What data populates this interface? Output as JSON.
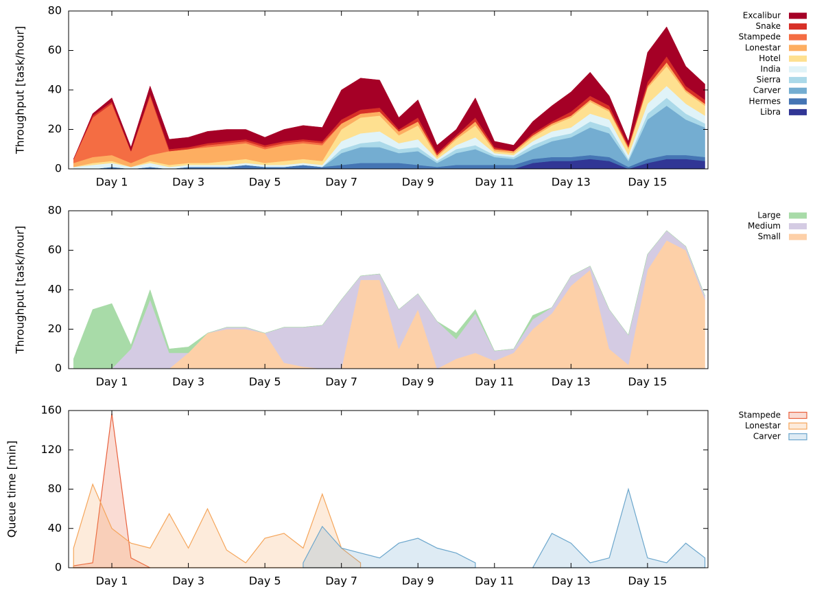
{
  "chart_data": [
    {
      "type": "area",
      "stacked": true,
      "ylabel": "Throughput [task/hour]",
      "x": [
        0,
        0.5,
        1,
        1.5,
        2,
        2.5,
        3,
        3.5,
        4,
        4.5,
        5,
        5.5,
        6,
        6.5,
        7,
        7.5,
        8,
        8.5,
        9,
        9.5,
        10,
        10.5,
        11,
        11.5,
        12,
        12.5,
        13,
        13.5,
        14,
        14.5,
        15,
        15.5,
        16,
        16.5
      ],
      "xlim": [
        -0.13,
        16.58
      ],
      "xticks": [
        {
          "value": 1,
          "label": "Day 1"
        },
        {
          "value": 3,
          "label": "Day 3"
        },
        {
          "value": 5,
          "label": "Day 5"
        },
        {
          "value": 7,
          "label": "Day 7"
        },
        {
          "value": 9,
          "label": "Day 9"
        },
        {
          "value": 11,
          "label": "Day 11"
        },
        {
          "value": 13,
          "label": "Day 13"
        },
        {
          "value": 15,
          "label": "Day 15"
        }
      ],
      "ylim": [
        0,
        80
      ],
      "yticks": [
        0,
        20,
        40,
        60,
        80
      ],
      "legend": "upper right",
      "series": [
        {
          "name": "Excalibur",
          "color": "#a50026",
          "values": [
            0,
            1,
            2,
            2,
            4,
            5,
            5,
            6,
            6,
            5,
            4,
            6,
            7,
            7,
            15,
            16,
            14,
            6,
            9,
            4,
            3,
            10,
            3,
            3,
            6,
            8,
            10,
            12,
            5,
            2,
            15,
            15,
            10,
            8
          ]
        },
        {
          "name": "Snake",
          "color": "#d73027",
          "values": [
            0,
            1,
            1,
            0,
            1,
            1,
            1,
            1,
            1,
            1,
            1,
            1,
            1,
            1,
            2,
            2,
            2,
            1,
            2,
            1,
            1,
            2,
            1,
            0,
            1,
            1,
            2,
            2,
            2,
            1,
            2,
            3,
            2,
            2
          ]
        },
        {
          "name": "Stampede",
          "color": "#f46d43",
          "values": [
            2,
            20,
            26,
            6,
            30,
            0,
            0,
            1,
            1,
            1,
            1,
            1,
            1,
            1,
            0,
            0,
            0,
            0,
            0,
            0,
            0,
            0,
            0,
            0,
            0,
            0,
            0,
            0,
            0,
            0,
            0,
            0,
            0,
            0
          ]
        },
        {
          "name": "Lonestar",
          "color": "#fdae61",
          "values": [
            2,
            3,
            3,
            2,
            3,
            7,
            7,
            8,
            8,
            8,
            7,
            8,
            8,
            8,
            3,
            2,
            2,
            2,
            2,
            1,
            1,
            2,
            1,
            1,
            1,
            1,
            1,
            1,
            1,
            1,
            1,
            2,
            1,
            1
          ]
        },
        {
          "name": "Hotel",
          "color": "#fee090",
          "values": [
            0,
            1,
            1,
            0,
            1,
            1,
            1,
            1,
            2,
            2,
            1,
            2,
            2,
            2,
            6,
            8,
            8,
            4,
            7,
            1,
            3,
            6,
            1,
            1,
            2,
            3,
            5,
            6,
            4,
            3,
            8,
            10,
            6,
            5
          ]
        },
        {
          "name": "India",
          "color": "#e0f3f8",
          "values": [
            1,
            2,
            2,
            1,
            2,
            1,
            1,
            1,
            1,
            1,
            1,
            1,
            1,
            1,
            4,
            5,
            5,
            3,
            4,
            1,
            2,
            4,
            1,
            1,
            2,
            3,
            3,
            4,
            4,
            2,
            5,
            6,
            5,
            4
          ]
        },
        {
          "name": "Sierra",
          "color": "#abd9e9",
          "values": [
            0,
            0,
            0,
            0,
            0,
            0,
            0,
            0,
            0,
            0,
            0,
            0,
            0,
            0,
            2,
            2,
            3,
            2,
            2,
            1,
            2,
            2,
            1,
            1,
            2,
            2,
            2,
            3,
            3,
            1,
            3,
            4,
            3,
            2
          ]
        },
        {
          "name": "Carver",
          "color": "#74add1",
          "values": [
            0,
            0,
            0,
            0,
            0,
            0,
            0,
            0,
            0,
            0,
            0,
            0,
            0,
            0,
            6,
            8,
            8,
            5,
            7,
            2,
            6,
            8,
            4,
            3,
            5,
            8,
            10,
            14,
            12,
            3,
            20,
            25,
            18,
            15
          ]
        },
        {
          "name": "Hermes",
          "color": "#4575b4",
          "values": [
            0,
            0,
            1,
            0,
            1,
            0,
            1,
            1,
            1,
            2,
            1,
            1,
            2,
            1,
            2,
            3,
            3,
            3,
            2,
            1,
            2,
            2,
            2,
            2,
            2,
            2,
            2,
            2,
            2,
            1,
            2,
            2,
            2,
            2
          ]
        },
        {
          "name": "Libra",
          "color": "#313695",
          "values": [
            0,
            0,
            0,
            0,
            0,
            0,
            0,
            0,
            0,
            0,
            0,
            0,
            0,
            0,
            0,
            0,
            0,
            0,
            0,
            0,
            0,
            0,
            0,
            0,
            3,
            4,
            4,
            5,
            4,
            0,
            3,
            5,
            5,
            4
          ]
        }
      ]
    },
    {
      "type": "area",
      "stacked": true,
      "ylabel": "Throughput [task/hour]",
      "x": [
        0,
        0.5,
        1,
        1.5,
        2,
        2.5,
        3,
        3.5,
        4,
        4.5,
        5,
        5.5,
        6,
        6.5,
        7,
        7.5,
        8,
        8.5,
        9,
        9.5,
        10,
        10.5,
        11,
        11.5,
        12,
        12.5,
        13,
        13.5,
        14,
        14.5,
        15,
        15.5,
        16,
        16.5
      ],
      "xlim": [
        -0.13,
        16.58
      ],
      "xticks": [
        {
          "value": 1,
          "label": "Day 1"
        },
        {
          "value": 3,
          "label": "Day 3"
        },
        {
          "value": 5,
          "label": "Day 5"
        },
        {
          "value": 7,
          "label": "Day 7"
        },
        {
          "value": 9,
          "label": "Day 9"
        },
        {
          "value": 11,
          "label": "Day 11"
        },
        {
          "value": 13,
          "label": "Day 13"
        },
        {
          "value": 15,
          "label": "Day 15"
        }
      ],
      "ylim": [
        0,
        80
      ],
      "yticks": [
        0,
        20,
        40,
        60,
        80
      ],
      "legend": "upper right",
      "series": [
        {
          "name": "Large",
          "color": "#a8dba8",
          "values": [
            5,
            30,
            33,
            2,
            5,
            2,
            3,
            0,
            0,
            0,
            0,
            0,
            0,
            0,
            0,
            0,
            0,
            0,
            0,
            0,
            3,
            2,
            0,
            0,
            2,
            0,
            0,
            0,
            0,
            0,
            0,
            0,
            0,
            0
          ]
        },
        {
          "name": "Medium",
          "color": "#d4cbe3",
          "values": [
            0,
            0,
            0,
            10,
            35,
            8,
            0,
            0,
            1,
            1,
            0,
            18,
            20,
            22,
            35,
            2,
            3,
            20,
            8,
            24,
            10,
            20,
            5,
            2,
            5,
            3,
            5,
            2,
            20,
            15,
            8,
            5,
            2,
            2
          ]
        },
        {
          "name": "Small",
          "color": "#fdd0a8",
          "values": [
            0,
            0,
            0,
            0,
            0,
            0,
            8,
            18,
            20,
            20,
            18,
            3,
            1,
            0,
            0,
            45,
            45,
            10,
            30,
            0,
            5,
            8,
            4,
            8,
            20,
            28,
            42,
            50,
            10,
            2,
            50,
            65,
            60,
            35
          ]
        }
      ]
    },
    {
      "type": "area",
      "stacked": false,
      "ylabel": "Queue time [min]",
      "x": [
        0,
        0.5,
        1,
        1.5,
        2,
        2.5,
        3,
        3.5,
        4,
        4.5,
        5,
        5.5,
        6,
        6.5,
        7,
        7.5,
        8,
        8.5,
        9,
        9.5,
        10,
        10.5,
        11,
        11.5,
        12,
        12.5,
        13,
        13.5,
        14,
        14.5,
        15,
        15.5,
        16,
        16.5
      ],
      "xlim": [
        -0.13,
        16.58
      ],
      "xticks": [
        {
          "value": 1,
          "label": "Day 1"
        },
        {
          "value": 3,
          "label": "Day 3"
        },
        {
          "value": 5,
          "label": "Day 5"
        },
        {
          "value": 7,
          "label": "Day 7"
        },
        {
          "value": 9,
          "label": "Day 9"
        },
        {
          "value": 11,
          "label": "Day 11"
        },
        {
          "value": 13,
          "label": "Day 13"
        },
        {
          "value": 15,
          "label": "Day 15"
        }
      ],
      "ylim": [
        0,
        160
      ],
      "yticks": [
        0,
        40,
        80,
        120,
        160
      ],
      "legend": "upper right",
      "series": [
        {
          "name": "Stampede",
          "color": "#e8603c",
          "values": [
            2,
            5,
            157,
            10,
            0,
            null,
            null,
            null,
            null,
            null,
            null,
            null,
            null,
            null,
            null,
            null,
            null,
            null,
            null,
            null,
            null,
            null,
            null,
            null,
            null,
            null,
            null,
            null,
            null,
            null,
            null,
            null,
            null,
            null
          ]
        },
        {
          "name": "Lonestar",
          "color": "#f5a55a",
          "values": [
            20,
            85,
            40,
            25,
            20,
            55,
            20,
            60,
            18,
            5,
            30,
            35,
            20,
            75,
            20,
            5,
            null,
            null,
            null,
            null,
            null,
            null,
            null,
            null,
            null,
            null,
            null,
            null,
            null,
            null,
            null,
            null,
            null,
            null
          ]
        },
        {
          "name": "Carver",
          "color": "#6ba6cc",
          "values": [
            null,
            null,
            null,
            null,
            null,
            null,
            null,
            null,
            null,
            null,
            null,
            null,
            5,
            42,
            20,
            15,
            10,
            25,
            30,
            20,
            15,
            5,
            null,
            null,
            0,
            35,
            25,
            5,
            10,
            80,
            10,
            5,
            25,
            10
          ]
        }
      ]
    }
  ]
}
